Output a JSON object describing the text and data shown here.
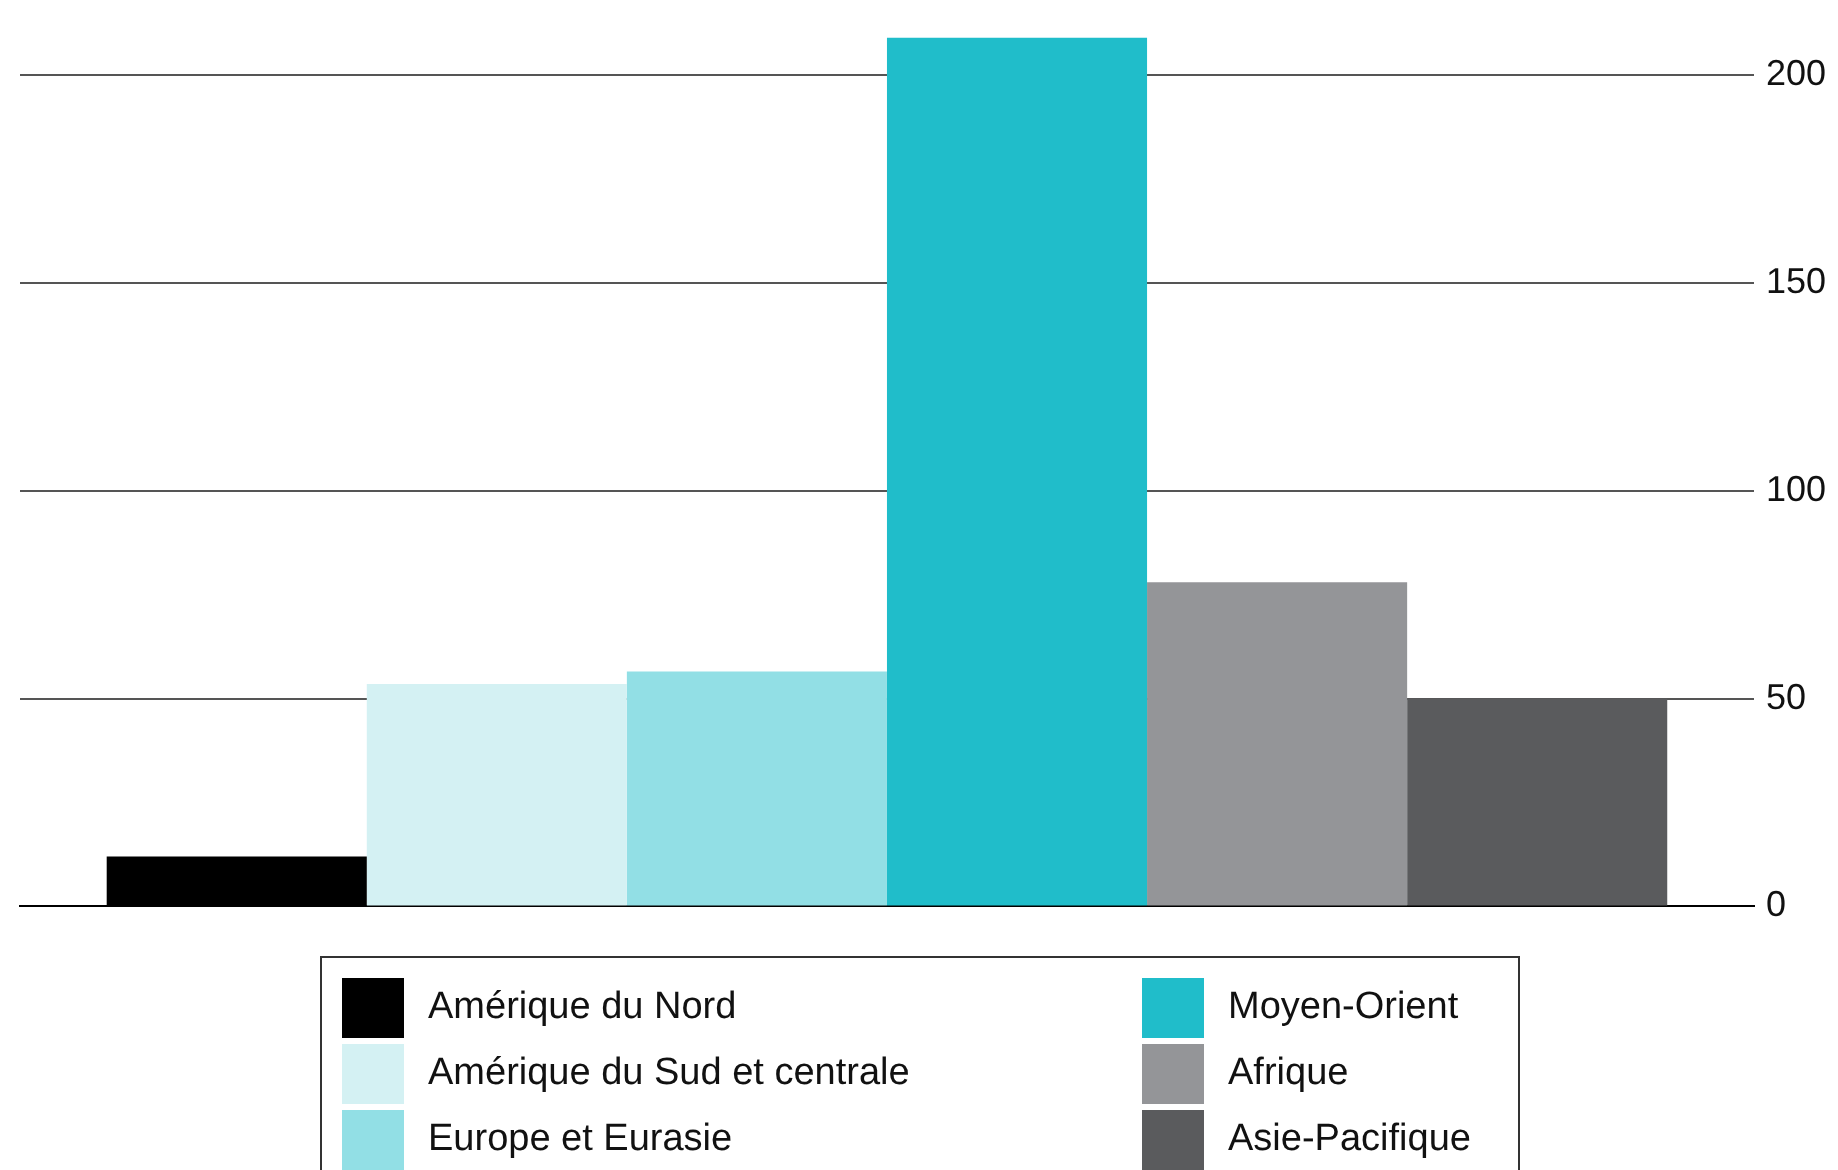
{
  "chart_data": {
    "type": "bar",
    "categories": [
      null
    ],
    "series": [
      {
        "name": "Amérique du Nord",
        "color": "#000000",
        "values": [
          12
        ]
      },
      {
        "name": "Amérique du Sud et centrale",
        "color": "#d4f1f3",
        "values": [
          53.5
        ]
      },
      {
        "name": "Europe et Eurasie",
        "color": "#92dfe5",
        "values": [
          56.5
        ]
      },
      {
        "name": "Moyen-Orient",
        "color": "#20bdca",
        "values": [
          209
        ]
      },
      {
        "name": "Afrique",
        "color": "#949598",
        "values": [
          78
        ]
      },
      {
        "name": "Asie-Pacifique",
        "color": "#5a5b5d",
        "values": [
          50
        ]
      }
    ],
    "ylim": [
      0,
      210
    ],
    "yticks": [
      0,
      50,
      100,
      150,
      200
    ],
    "grid": "y",
    "legend": "bottom",
    "tick_labels": "y"
  }
}
